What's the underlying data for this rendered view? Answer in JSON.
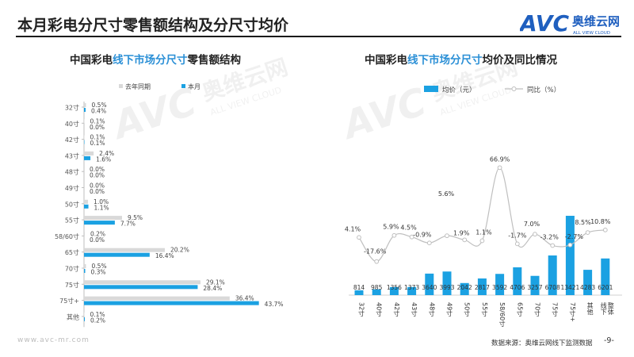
{
  "page": {
    "title": "本月彩电分尺寸零售额结构及分尺寸均价",
    "footer_url": "www.avc-mr.com",
    "footer_source": "数据来源：奥维云网线下监测数据",
    "page_number": "-9-"
  },
  "logo": {
    "mark": "AVC",
    "name": "奥维云网",
    "tagline": "ALL VIEW CLOUD",
    "color": "#1f5fbf"
  },
  "watermark": {
    "mark": "AVC",
    "name": "奥维云网",
    "tagline": "ALL VIEW CLOUD"
  },
  "colors": {
    "bar_current": "#1ba1e2",
    "bar_last": "#d9d9d9",
    "line": "#bfbfbf",
    "highlight_text": "#2a8fd6"
  },
  "left_subtitle": {
    "prefix": "中国彩电",
    "highlight": "线下市场分尺寸",
    "suffix": "零售额结构"
  },
  "right_subtitle": {
    "prefix": "中国彩电",
    "highlight": "线下市场分尺寸",
    "suffix": "均价及同比情况"
  },
  "chart_data": [
    {
      "type": "bar",
      "orientation": "horizontal",
      "categories": [
        "32寸",
        "40寸",
        "42寸",
        "43寸",
        "48寸",
        "49寸",
        "50寸",
        "55寸",
        "58/60寸",
        "65寸",
        "70寸",
        "75寸",
        "75寸+",
        "其他"
      ],
      "series": [
        {
          "name": "去年同期",
          "values": [
            0.5,
            0.1,
            0.1,
            2.4,
            0.0,
            0.0,
            1.0,
            9.5,
            0.2,
            20.2,
            0.5,
            29.1,
            36.4,
            0.1
          ]
        },
        {
          "name": "本月",
          "values": [
            0.4,
            0.0,
            0.1,
            1.6,
            0.0,
            0.0,
            1.1,
            7.7,
            0.0,
            16.4,
            0.3,
            28.4,
            43.7,
            0.2
          ]
        }
      ],
      "value_suffix": "%",
      "legend_position": "top"
    },
    {
      "type": "bar+line",
      "categories": [
        "32寸",
        "40寸",
        "42寸",
        "43寸",
        "48寸",
        "49寸",
        "50寸",
        "55寸",
        "58/60寸",
        "65寸",
        "70寸",
        "75寸",
        "75寸+",
        "其他",
        "线下整体"
      ],
      "bar_series": {
        "name": "均价（元）",
        "values": [
          814,
          985,
          1356,
          1373,
          3640,
          3993,
          2042,
          2817,
          3592,
          4706,
          3257,
          6708,
          13421,
          4283,
          6201
        ]
      },
      "line_series": {
        "name": "同比（%）",
        "values": [
          4.1,
          -17.6,
          5.9,
          4.5,
          -0.9,
          5.6,
          1.9,
          1.1,
          66.9,
          -1.7,
          7.0,
          -3.2,
          -2.7,
          8.5,
          10.8
        ]
      },
      "line_labels": [
        "4.1%",
        "-17.6%",
        "5.9%",
        "4.5%",
        "-0.9%",
        "5.6%",
        "1.9%",
        "1.1%",
        "66.9%",
        "-1.7%",
        "7.0%",
        "-3.2%",
        "-2.7%",
        "8.5%",
        "10.8%"
      ],
      "legend_position": "top",
      "grid": false
    }
  ]
}
